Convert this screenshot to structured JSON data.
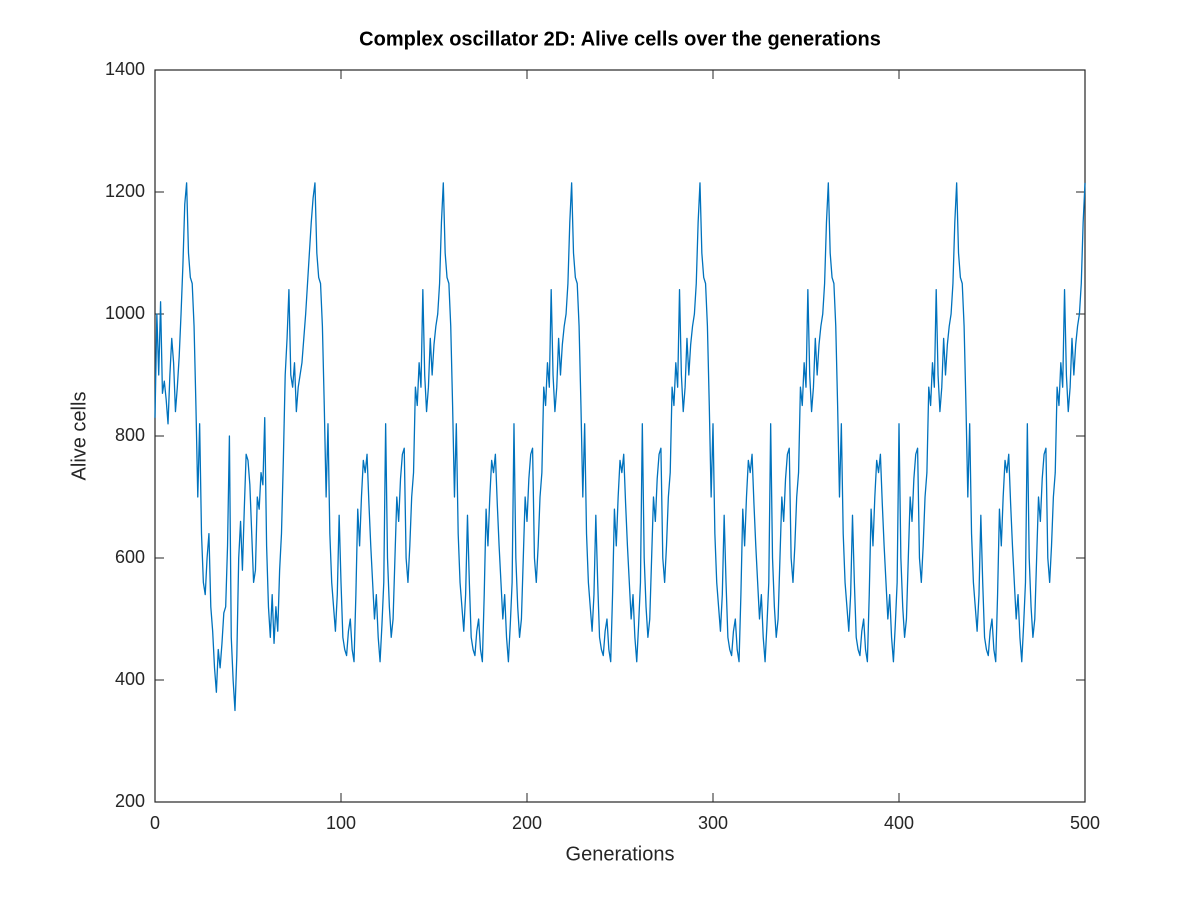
{
  "chart_data": {
    "type": "line",
    "title": "Complex oscillator 2D: Alive cells over the generations",
    "xlabel": "Generations",
    "ylabel": "Alive cells",
    "xlim": [
      0,
      500
    ],
    "ylim": [
      200,
      1400
    ],
    "xticks": [
      0,
      100,
      200,
      300,
      400,
      500
    ],
    "yticks": [
      200,
      400,
      600,
      800,
      1000,
      1200,
      1400
    ],
    "grid": false,
    "x": [
      0,
      1,
      2,
      3,
      4,
      5,
      6,
      7,
      8,
      9,
      10,
      11,
      12,
      13,
      14,
      15,
      16,
      17,
      18,
      19,
      20,
      21,
      22,
      23,
      24,
      25,
      26,
      27,
      28,
      29,
      30,
      31,
      32,
      33,
      34,
      35,
      36,
      37,
      38,
      39,
      40,
      41,
      42,
      43,
      44,
      45,
      46,
      47,
      48,
      49,
      50,
      51,
      52,
      53,
      54,
      55,
      56,
      57,
      58,
      59,
      60,
      61,
      62,
      63,
      64,
      65,
      66,
      67,
      68,
      69,
      70,
      71,
      72,
      73,
      74,
      75,
      76,
      77,
      78,
      79,
      80,
      81,
      82,
      83,
      84,
      85,
      86,
      87,
      88,
      89,
      90,
      91,
      92,
      93,
      94,
      95,
      96,
      97,
      98,
      99,
      100,
      101,
      102,
      103,
      104,
      105,
      106,
      107,
      108,
      109,
      110,
      111,
      112,
      113,
      114,
      115,
      116,
      117,
      118,
      119,
      120,
      121,
      122,
      123,
      124,
      125,
      126,
      127,
      128,
      129,
      130,
      131,
      132,
      133,
      134,
      135,
      136,
      137,
      138,
      139,
      140,
      141,
      142,
      143,
      144,
      145,
      146,
      147,
      148,
      149,
      150,
      151,
      152,
      153,
      154,
      155,
      156,
      157,
      158,
      159,
      160,
      161,
      162,
      163,
      164,
      165,
      166,
      167,
      168,
      169,
      170,
      171,
      172,
      173,
      174,
      175,
      176,
      177,
      178,
      179,
      180,
      181,
      182,
      183,
      184,
      185,
      186,
      187,
      188,
      189,
      190,
      191,
      192,
      193,
      194,
      195,
      196,
      197,
      198,
      199,
      200,
      201,
      202,
      203,
      204,
      205,
      206,
      207,
      208,
      209,
      210,
      211,
      212,
      213,
      214,
      215,
      216,
      217,
      218,
      219,
      220,
      221,
      222,
      223,
      224,
      225,
      226,
      227,
      228,
      229,
      230,
      231,
      232,
      233,
      234,
      235,
      236,
      237,
      238,
      239,
      240,
      241,
      242,
      243,
      244,
      245,
      246,
      247,
      248,
      249,
      250,
      251,
      252,
      253,
      254,
      255,
      256,
      257,
      258,
      259,
      260,
      261,
      262,
      263,
      264,
      265,
      266,
      267,
      268,
      269,
      270,
      271,
      272,
      273,
      274,
      275,
      276,
      277,
      278,
      279,
      280,
      281,
      282,
      283,
      284,
      285,
      286,
      287,
      288,
      289,
      290,
      291,
      292,
      293,
      294,
      295,
      296,
      297,
      298,
      299,
      300,
      301,
      302,
      303,
      304,
      305,
      306,
      307,
      308,
      309,
      310,
      311,
      312,
      313,
      314,
      315,
      316,
      317,
      318,
      319,
      320,
      321,
      322,
      323,
      324,
      325,
      326,
      327,
      328,
      329,
      330,
      331,
      332,
      333,
      334,
      335,
      336,
      337,
      338,
      339,
      340,
      341,
      342,
      343,
      344,
      345,
      346,
      347,
      348,
      349,
      350,
      351,
      352,
      353,
      354,
      355,
      356,
      357,
      358,
      359,
      360,
      361,
      362,
      363,
      364,
      365,
      366,
      367,
      368,
      369,
      370,
      371,
      372,
      373,
      374,
      375,
      376,
      377,
      378,
      379,
      380,
      381,
      382,
      383,
      384,
      385,
      386,
      387,
      388,
      389,
      390,
      391,
      392,
      393,
      394,
      395,
      396,
      397,
      398,
      399,
      400,
      401,
      402,
      403,
      404,
      405,
      406,
      407,
      408,
      409,
      410,
      411,
      412,
      413,
      414,
      415,
      416,
      417,
      418,
      419,
      420,
      421,
      422,
      423,
      424,
      425,
      426,
      427,
      428,
      429,
      430,
      431,
      432,
      433,
      434,
      435,
      436,
      437,
      438,
      439,
      440,
      441,
      442,
      443,
      444,
      445,
      446,
      447,
      448,
      449,
      450,
      451,
      452,
      453,
      454,
      455,
      456,
      457,
      458,
      459,
      460,
      461,
      462,
      463,
      464,
      465,
      466,
      467,
      468,
      469,
      470,
      471,
      472,
      473,
      474,
      475,
      476,
      477,
      478,
      479,
      480,
      481,
      482,
      483,
      484,
      485,
      486,
      487,
      488,
      489,
      490,
      491,
      492,
      493,
      494,
      495,
      496,
      497,
      498,
      499,
      500
    ],
    "series": [
      {
        "color": "#0072bd",
        "values": [
          830,
          1000,
          900,
          1020,
          870,
          890,
          860,
          820,
          900,
          960,
          920,
          840,
          880,
          930,
          1000,
          1080,
          1180,
          1215,
          1100,
          1060,
          1050,
          980,
          850,
          700,
          820,
          640,
          560,
          540,
          600,
          640,
          520,
          480,
          420,
          380,
          450,
          420,
          460,
          510,
          520,
          620,
          800,
          470,
          400,
          350,
          440,
          600,
          660,
          580,
          680,
          770,
          760,
          720,
          640,
          560,
          580,
          700,
          680,
          740,
          720,
          830,
          620,
          520,
          470,
          540,
          460,
          520,
          480,
          580,
          640,
          760,
          900,
          960,
          1040,
          900,
          880,
          920,
          840,
          880,
          900,
          920,
          960,
          1000,
          1050,
          1100,
          1150,
          1190,
          1215,
          1100,
          1060,
          1050,
          980,
          850,
          700,
          820,
          640,
          560,
          520,
          480,
          540,
          670,
          560,
          470,
          450,
          440,
          480,
          500,
          450,
          430,
          540,
          680,
          620,
          700,
          760,
          740,
          770,
          690,
          620,
          560,
          500,
          540,
          470,
          430,
          490,
          560,
          820,
          600,
          520,
          470,
          500,
          600,
          700,
          660,
          730,
          770,
          780,
          600,
          560,
          620,
          700,
          740,
          880,
          850,
          920,
          880,
          1040,
          900,
          840,
          880,
          960,
          900,
          950,
          980,
          1000,
          1050,
          1150,
          1215,
          1100,
          1060,
          1050,
          980,
          850,
          700,
          820,
          640,
          560,
          520,
          480,
          540,
          670,
          560,
          470,
          450,
          440,
          480,
          500,
          450,
          430,
          540,
          680,
          620,
          700,
          760,
          740,
          770,
          690,
          620,
          560,
          500,
          540,
          470,
          430,
          490,
          560,
          820,
          600,
          520,
          470,
          500,
          600,
          700,
          660,
          730,
          770,
          780,
          600,
          560,
          620,
          700,
          740,
          880,
          850,
          920,
          880,
          1040,
          900,
          840,
          880,
          960,
          900,
          950,
          980,
          1000,
          1050,
          1150,
          1215,
          1100,
          1060,
          1050,
          980,
          850,
          700,
          820,
          640,
          560,
          520,
          480,
          540,
          670,
          560,
          470,
          450,
          440,
          480,
          500,
          450,
          430,
          540,
          680,
          620,
          700,
          760,
          740,
          770,
          690,
          620,
          560,
          500,
          540,
          470,
          430,
          490,
          560,
          820,
          600,
          520,
          470,
          500,
          600,
          700,
          660,
          730,
          770,
          780,
          600,
          560,
          620,
          700,
          740,
          880,
          850,
          920,
          880,
          1040,
          900,
          840,
          880,
          960,
          900,
          950,
          980,
          1000,
          1050,
          1150,
          1215,
          1100,
          1060,
          1050,
          980,
          850,
          700,
          820,
          640,
          560,
          520,
          480,
          540,
          670,
          560,
          470,
          450,
          440,
          480,
          500,
          450,
          430,
          540,
          680,
          620,
          700,
          760,
          740,
          770,
          690,
          620,
          560,
          500,
          540,
          470,
          430,
          490,
          560,
          820,
          600,
          520,
          470,
          500,
          600,
          700,
          660,
          730,
          770,
          780,
          600,
          560,
          620,
          700,
          740,
          880,
          850,
          920,
          880,
          1040,
          900,
          840,
          880,
          960,
          900,
          950,
          980,
          1000,
          1050,
          1150,
          1215,
          1100,
          1060,
          1050,
          980,
          850,
          700,
          820,
          640,
          560,
          520,
          480,
          540,
          670,
          560,
          470,
          450,
          440,
          480,
          500,
          450,
          430,
          540,
          680,
          620,
          700,
          760,
          740,
          770,
          690,
          620,
          560,
          500,
          540,
          470,
          430,
          490,
          560,
          820,
          600,
          520,
          470,
          500,
          600,
          700,
          660,
          730,
          770,
          780,
          600,
          560,
          620,
          700,
          740,
          880,
          850,
          920,
          880,
          1040,
          900,
          840,
          880,
          960,
          900,
          950,
          980,
          1000,
          1050,
          1150,
          1215,
          1100,
          1060,
          1050,
          980,
          850,
          700,
          820,
          640,
          560,
          520,
          480,
          540,
          670,
          560,
          470,
          450,
          440,
          480,
          500,
          450,
          430,
          540,
          680,
          620,
          700,
          760,
          740,
          770,
          690,
          620,
          560,
          500,
          540,
          470,
          430,
          490,
          560,
          820,
          600,
          520,
          470,
          500,
          600,
          700,
          660,
          730,
          770,
          780,
          600,
          560,
          620,
          700,
          740,
          880,
          850,
          920,
          880,
          1040,
          900,
          840,
          880,
          960,
          900,
          950,
          980,
          1000,
          1050,
          1150,
          1215
        ]
      }
    ]
  }
}
